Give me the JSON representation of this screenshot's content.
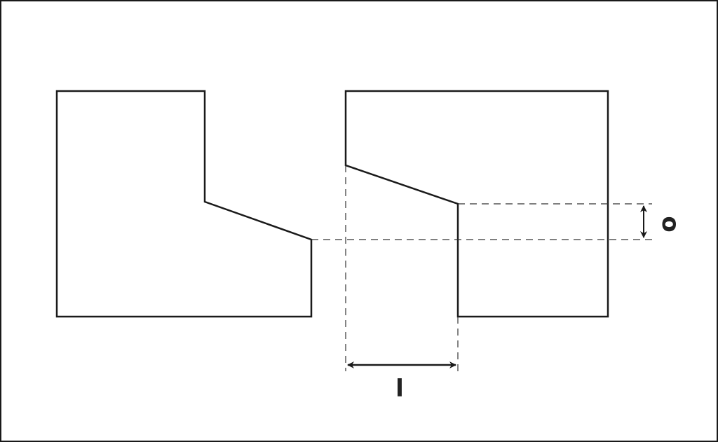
{
  "labels": {
    "length": "l",
    "offset": "o"
  },
  "colors": {
    "stroke": "#1a1a1a",
    "background": "#ffffff"
  }
}
